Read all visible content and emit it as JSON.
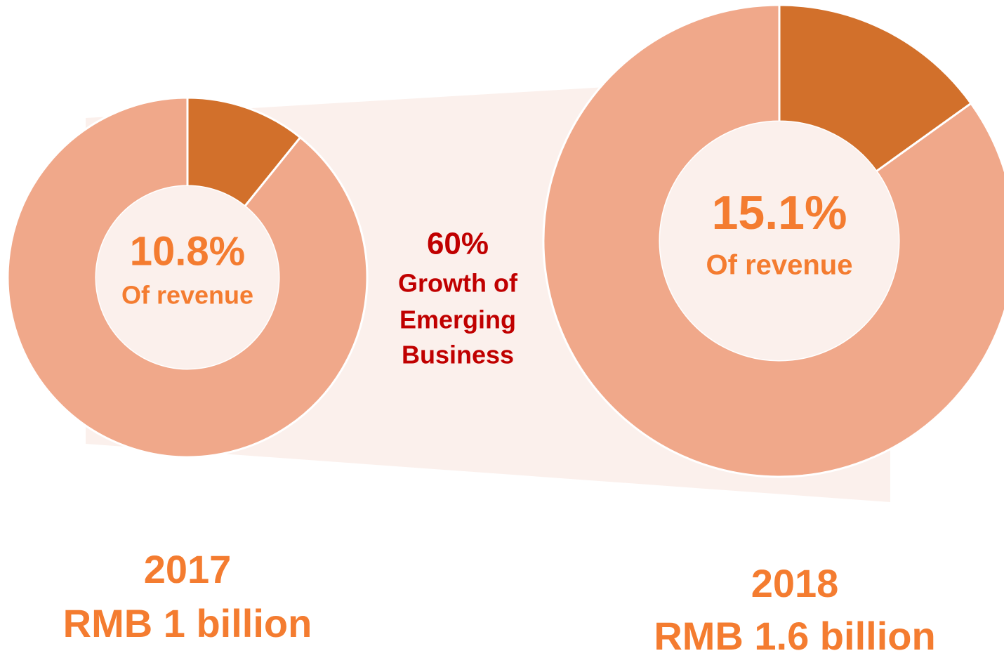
{
  "chart_data": [
    {
      "type": "pie",
      "title": "2017",
      "subtitle": "RMB 1 billion",
      "annotation": "Of revenue",
      "categories": [
        null,
        null
      ],
      "values": [
        10.8,
        89.2
      ],
      "value_labels": [
        "10.8%",
        null
      ],
      "colors": [
        "#d2702b",
        "#f0a88a"
      ],
      "donut": true
    },
    {
      "type": "pie",
      "title": "2018",
      "subtitle": "RMB 1.6 billion",
      "annotation": "Of revenue",
      "categories": [
        null,
        null
      ],
      "values": [
        15.1,
        84.9
      ],
      "value_labels": [
        "15.1%",
        null
      ],
      "colors": [
        "#d2702b",
        "#f0a88a"
      ],
      "donut": true
    }
  ],
  "annotation": {
    "value": "60%",
    "lines": [
      "Growth of",
      "Emerging",
      "Business"
    ]
  }
}
